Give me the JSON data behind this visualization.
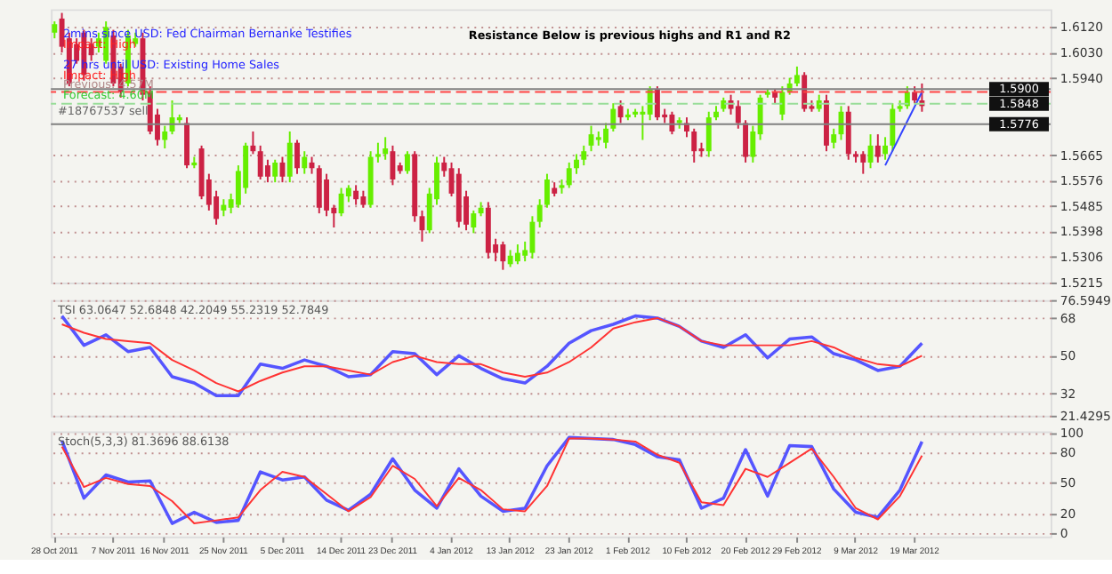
{
  "chart_data": [
    {
      "type": "candlestick",
      "categories": [
        null,
        null,
        null,
        null,
        null,
        null,
        null,
        null,
        null,
        null,
        null,
        null,
        null,
        null,
        null,
        null,
        null,
        null,
        null,
        null,
        null,
        null,
        null,
        null,
        null,
        null,
        null,
        null,
        null,
        null,
        null,
        null,
        null,
        null,
        null,
        null,
        null,
        null,
        null,
        null,
        null,
        null,
        null,
        null,
        null,
        null,
        null,
        null,
        null,
        null,
        null,
        null,
        null,
        null,
        null,
        null,
        null,
        null,
        null,
        null,
        null,
        null,
        null,
        null,
        null,
        null,
        null,
        null,
        null,
        null,
        null,
        null,
        null,
        null,
        null,
        null,
        null,
        null,
        null,
        null,
        null,
        null,
        null,
        null,
        null,
        null,
        null,
        null,
        null,
        null,
        null,
        null,
        null,
        null,
        null,
        null,
        null,
        null,
        null,
        null,
        null,
        null,
        null,
        null,
        null,
        null,
        null,
        null,
        null,
        null,
        null,
        null,
        null,
        null,
        null,
        null,
        null,
        null,
        null,
        null,
        null,
        null,
        null,
        null,
        null,
        null,
        null,
        null,
        null,
        null,
        null,
        null,
        null,
        null,
        null,
        null
      ],
      "ohlc": [
        [
          1.61,
          1.614,
          1.608,
          1.613
        ],
        [
          1.615,
          1.617,
          1.603,
          1.605
        ],
        [
          1.608,
          1.61,
          1.591,
          1.592
        ],
        [
          1.606,
          1.608,
          1.599,
          1.6
        ],
        [
          1.61,
          1.611,
          1.593,
          1.595
        ],
        [
          1.606,
          1.608,
          1.6,
          1.602
        ],
        [
          1.605,
          1.61,
          1.603,
          1.608
        ],
        [
          1.6,
          1.614,
          1.599,
          1.612
        ],
        [
          1.609,
          1.611,
          1.591,
          1.592
        ],
        [
          1.598,
          1.599,
          1.587,
          1.589
        ],
        [
          1.592,
          1.611,
          1.591,
          1.609
        ],
        [
          1.606,
          1.61,
          1.605,
          1.608
        ],
        [
          1.608,
          1.61,
          1.586,
          1.588
        ],
        [
          1.589,
          1.591,
          1.574,
          1.575
        ],
        [
          1.581,
          1.583,
          1.57,
          1.572
        ],
        [
          1.572,
          1.577,
          1.569,
          1.575
        ],
        [
          1.575,
          1.586,
          1.574,
          1.58
        ],
        [
          1.579,
          1.581,
          1.578,
          1.58
        ],
        [
          1.578,
          1.58,
          1.562,
          1.563
        ],
        [
          1.563,
          1.566,
          1.562,
          1.564
        ],
        [
          1.569,
          1.57,
          1.551,
          1.552
        ],
        [
          1.558,
          1.56,
          1.547,
          1.549
        ],
        [
          1.552,
          1.554,
          1.542,
          1.544
        ],
        [
          1.547,
          1.551,
          1.545,
          1.549
        ],
        [
          1.548,
          1.553,
          1.546,
          1.551
        ],
        [
          1.549,
          1.563,
          1.548,
          1.561
        ],
        [
          1.555,
          1.571,
          1.553,
          1.57
        ],
        [
          1.57,
          1.575,
          1.567,
          1.568
        ],
        [
          1.568,
          1.57,
          1.558,
          1.559
        ],
        [
          1.563,
          1.565,
          1.557,
          1.559
        ],
        [
          1.559,
          1.565,
          1.557,
          1.564
        ],
        [
          1.564,
          1.566,
          1.557,
          1.559
        ],
        [
          1.559,
          1.575,
          1.557,
          1.571
        ],
        [
          1.571,
          1.572,
          1.56,
          1.562
        ],
        [
          1.562,
          1.568,
          1.56,
          1.566
        ],
        [
          1.564,
          1.566,
          1.56,
          1.562
        ],
        [
          1.562,
          1.563,
          1.546,
          1.548
        ],
        [
          1.558,
          1.56,
          1.545,
          1.547
        ],
        [
          1.548,
          1.549,
          1.541,
          1.546
        ],
        [
          1.546,
          1.555,
          1.545,
          1.553
        ],
        [
          1.552,
          1.556,
          1.55,
          1.555
        ],
        [
          1.554,
          1.556,
          1.549,
          1.551
        ],
        [
          1.552,
          1.554,
          1.548,
          1.549
        ],
        [
          1.549,
          1.568,
          1.548,
          1.566
        ],
        [
          1.566,
          1.571,
          1.564,
          1.567
        ],
        [
          1.567,
          1.573,
          1.565,
          1.569
        ],
        [
          1.568,
          1.57,
          1.556,
          1.558
        ],
        [
          1.563,
          1.564,
          1.56,
          1.561
        ],
        [
          1.561,
          1.568,
          1.56,
          1.567
        ],
        [
          1.567,
          1.568,
          1.543,
          1.545
        ],
        [
          1.545,
          1.547,
          1.536,
          1.54
        ],
        [
          1.54,
          1.555,
          1.539,
          1.553
        ],
        [
          1.551,
          1.566,
          1.549,
          1.564
        ],
        [
          1.564,
          1.566,
          1.559,
          1.561
        ],
        [
          1.562,
          1.564,
          1.552,
          1.553
        ],
        [
          1.56,
          1.562,
          1.541,
          1.543
        ],
        [
          1.552,
          1.554,
          1.54,
          1.542
        ],
        [
          1.541,
          1.547,
          1.539,
          1.546
        ],
        [
          1.546,
          1.55,
          1.545,
          1.548
        ],
        [
          1.548,
          1.55,
          1.53,
          1.532
        ],
        [
          1.535,
          1.537,
          1.529,
          1.532
        ],
        [
          1.535,
          1.536,
          1.526,
          1.529
        ],
        [
          1.528,
          1.533,
          1.527,
          1.531
        ],
        [
          1.529,
          1.535,
          1.528,
          1.532
        ],
        [
          1.531,
          1.536,
          1.529,
          1.533
        ],
        [
          1.532,
          1.545,
          1.53,
          1.543
        ],
        [
          1.543,
          1.551,
          1.541,
          1.549
        ],
        [
          1.549,
          1.56,
          1.548,
          1.558
        ],
        [
          1.555,
          1.557,
          1.552,
          1.553
        ],
        [
          1.555,
          1.558,
          1.553,
          1.556
        ],
        [
          1.556,
          1.564,
          1.555,
          1.562
        ],
        [
          1.562,
          1.567,
          1.56,
          1.565
        ],
        [
          1.565,
          1.57,
          1.563,
          1.568
        ],
        [
          1.57,
          1.577,
          1.568,
          1.574
        ],
        [
          1.572,
          1.575,
          1.57,
          1.573
        ],
        [
          1.571,
          1.578,
          1.569,
          1.576
        ],
        [
          1.576,
          1.585,
          1.575,
          1.583
        ],
        [
          1.584,
          1.586,
          1.578,
          1.58
        ],
        [
          1.58,
          1.583,
          1.579,
          1.581
        ],
        [
          1.581,
          1.583,
          1.58,
          1.582
        ],
        [
          1.581,
          1.584,
          1.572,
          1.582
        ],
        [
          1.581,
          1.591,
          1.579,
          1.59
        ],
        [
          1.59,
          1.591,
          1.579,
          1.58
        ],
        [
          1.581,
          1.583,
          1.578,
          1.58
        ],
        [
          1.581,
          1.582,
          1.574,
          1.575
        ],
        [
          1.578,
          1.58,
          1.576,
          1.579
        ],
        [
          1.578,
          1.58,
          1.573,
          1.575
        ],
        [
          1.575,
          1.576,
          1.564,
          1.568
        ],
        [
          1.569,
          1.571,
          1.566,
          1.568
        ],
        [
          1.568,
          1.582,
          1.566,
          1.58
        ],
        [
          1.58,
          1.584,
          1.579,
          1.582
        ],
        [
          1.583,
          1.587,
          1.582,
          1.586
        ],
        [
          1.586,
          1.588,
          1.581,
          1.583
        ],
        [
          1.584,
          1.586,
          1.576,
          1.578
        ],
        [
          1.578,
          1.579,
          1.564,
          1.566
        ],
        [
          1.566,
          1.577,
          1.564,
          1.575
        ],
        [
          1.574,
          1.588,
          1.572,
          1.587
        ],
        [
          1.588,
          1.59,
          1.587,
          1.589
        ],
        [
          1.589,
          1.59,
          1.585,
          1.587
        ],
        [
          1.581,
          1.591,
          1.579,
          1.589
        ],
        [
          1.589,
          1.594,
          1.588,
          1.592
        ],
        [
          1.592,
          1.598,
          1.591,
          1.595
        ],
        [
          1.595,
          1.596,
          1.582,
          1.583
        ],
        [
          1.584,
          1.586,
          1.582,
          1.583
        ],
        [
          1.583,
          1.588,
          1.582,
          1.586
        ],
        [
          1.586,
          1.588,
          1.568,
          1.57
        ],
        [
          1.571,
          1.576,
          1.569,
          1.574
        ],
        [
          1.574,
          1.584,
          1.572,
          1.582
        ],
        [
          1.582,
          1.584,
          1.565,
          1.567
        ],
        [
          1.567,
          1.568,
          1.564,
          1.566
        ],
        [
          1.567,
          1.568,
          1.56,
          1.564
        ],
        [
          1.564,
          1.574,
          1.562,
          1.57
        ],
        [
          1.57,
          1.574,
          1.564,
          1.566
        ],
        [
          1.567,
          1.573,
          1.565,
          1.57
        ],
        [
          1.57,
          1.585,
          1.568,
          1.583
        ],
        [
          1.583,
          1.586,
          1.582,
          1.584
        ],
        [
          1.584,
          1.591,
          1.583,
          1.589
        ],
        [
          1.589,
          1.591,
          1.585,
          1.586
        ],
        [
          1.586,
          1.592,
          1.582,
          1.584
        ],
        null,
        null,
        null,
        null,
        null,
        null,
        null,
        null,
        null,
        null,
        null,
        null,
        null,
        null,
        null,
        null,
        null
      ],
      "colors": [
        "#66ee00",
        "#cc2244",
        "#cc2244",
        "#cc2244",
        "#cc2244",
        "#cc2244",
        "#66ee00",
        "#66ee00",
        "#cc2244",
        "#cc2244",
        "#66ee00",
        "#66ee00",
        "#cc2244",
        "#cc2244",
        "#cc2244",
        "#66ee00",
        "#66ee00",
        "#66ee00",
        "#cc2244",
        "#66ee00",
        "#cc2244",
        "#cc2244",
        "#cc2244",
        "#66ee00",
        "#66ee00",
        "#66ee00",
        "#66ee00",
        "#cc2244",
        "#cc2244",
        "#cc2244",
        "#66ee00",
        "#cc2244",
        "#66ee00",
        "#cc2244",
        "#66ee00",
        "#cc2244",
        "#cc2244",
        "#cc2244",
        "#cc2244",
        "#66ee00",
        "#66ee00",
        "#cc2244",
        "#cc2244",
        "#66ee00",
        "#66ee00",
        "#66ee00",
        "#cc2244",
        "#cc2244",
        "#66ee00",
        "#cc2244",
        "#cc2244",
        "#66ee00",
        "#66ee00",
        "#cc2244",
        "#cc2244",
        "#cc2244",
        "#cc2244",
        "#66ee00",
        "#66ee00",
        "#cc2244",
        "#cc2244",
        "#cc2244",
        "#66ee00",
        "#66ee00",
        "#66ee00",
        "#66ee00",
        "#66ee00",
        "#66ee00",
        "#cc2244",
        "#66ee00",
        "#66ee00",
        "#66ee00",
        "#66ee00",
        "#66ee00",
        "#66ee00",
        "#66ee00",
        "#66ee00",
        "#cc2244",
        "#66ee00",
        "#66ee00",
        "#66ee00",
        "#66ee00",
        "#cc2244",
        "#cc2244",
        "#cc2244",
        "#66ee00",
        "#cc2244",
        "#cc2244",
        "#cc2244",
        "#66ee00",
        "#66ee00",
        "#66ee00",
        "#cc2244",
        "#cc2244",
        "#cc2244",
        "#66ee00",
        "#66ee00",
        "#66ee00",
        "#cc2244",
        "#66ee00",
        "#66ee00",
        "#66ee00",
        "#cc2244",
        "#cc2244",
        "#66ee00",
        "#cc2244",
        "#66ee00",
        "#66ee00",
        "#cc2244",
        "#cc2244",
        "#cc2244",
        "#66ee00",
        "#cc2244",
        "#66ee00",
        "#66ee00",
        "#66ee00",
        "#66ee00",
        "#cc2244",
        "#cc2244",
        null,
        null,
        null,
        null,
        null,
        null,
        null,
        null,
        null,
        null,
        null,
        null,
        null,
        null,
        null,
        null,
        null
      ],
      "ylim": [
        1.5215,
        1.6183
      ],
      "yticks": [
        {
          "value": 1.612,
          "label": "1.6120"
        },
        {
          "value": 1.603,
          "label": "1.6030"
        },
        {
          "value": 1.594,
          "label": "1.5940"
        },
        1.5665,
        1.5576,
        1.5485,
        1.5398,
        1.5306,
        1.5215
      ],
      "grid": "y",
      "tick_labels": "y",
      "ref_lines": [
        {
          "axis": "y",
          "value": 1.59,
          "label": "1.5900",
          "color": "#808080",
          "line_style": "solid"
        },
        {
          "axis": "y",
          "value": 1.589,
          "color": "#ff4444",
          "line_style": "dashed"
        },
        {
          "axis": "y",
          "value": 1.5848,
          "label": "1.5848",
          "color": "#99dd99",
          "line_style": "dashed"
        },
        {
          "axis": "y",
          "value": 1.5776,
          "label": "1.5776",
          "color": "#808080",
          "line_style": "solid"
        }
      ],
      "annotations": [
        "Resistance Below is previous highs and R1 and R2",
        "2mins since USD: Fed Chairman Bernanke Testifies",
        "Impact: High",
        "27 hrs until USD: Existing Home Sales",
        "Impact: High",
        "Previous: 4.57M",
        "Forecast: 4.60M",
        "#18767537 sell"
      ],
      "series": [
        {
          "type": "line",
          "color": "#3344ff",
          "values": [
            null,
            null,
            null,
            null,
            null,
            null,
            null,
            null,
            null,
            null,
            null,
            null,
            null,
            null,
            null,
            null,
            null,
            null,
            null,
            null,
            null,
            null,
            null,
            null,
            null,
            null,
            null,
            null,
            null,
            null,
            null,
            null,
            null,
            null,
            null,
            null,
            null,
            null,
            null,
            null,
            null,
            null,
            null,
            null,
            null,
            null,
            null,
            null,
            null,
            null,
            null,
            null,
            null,
            null,
            null,
            null,
            null,
            null,
            null,
            null,
            null,
            null,
            null,
            null,
            null,
            null,
            null,
            null,
            null,
            null,
            null,
            null,
            null,
            null,
            null,
            null,
            null,
            null,
            null,
            null,
            null,
            null,
            null,
            null,
            null,
            null,
            null,
            null,
            null,
            null,
            null,
            null,
            null,
            null,
            null,
            null,
            null,
            null,
            null,
            null,
            null,
            null,
            null,
            null,
            null,
            null,
            null,
            null,
            null,
            null,
            null,
            null,
            null,
            1.563,
            null,
            null,
            null,
            null,
            1.589,
            null,
            null,
            null,
            null,
            null,
            null,
            null,
            null,
            null,
            null,
            null,
            null,
            null,
            null,
            null,
            null,
            null
          ]
        }
      ]
    },
    {
      "type": "line",
      "title": "TSI 63.0647 52.6848 42.2049 55.2319 52.7849",
      "categories": [
        null,
        null,
        null,
        null,
        null,
        null,
        null,
        null,
        null,
        null,
        null,
        null,
        null,
        null,
        null,
        null,
        null,
        null,
        null,
        null,
        null,
        null,
        null,
        null,
        null,
        null,
        null,
        null,
        null,
        null,
        null,
        null,
        null,
        null,
        null,
        null,
        null,
        null,
        null,
        null,
        null,
        null,
        null,
        null,
        null,
        null,
        null,
        null,
        null,
        null,
        null,
        null,
        null,
        null,
        null,
        null,
        null,
        null,
        null,
        null,
        null,
        null,
        null,
        null,
        null,
        null,
        null,
        null,
        null,
        null,
        null,
        null,
        null,
        null,
        null,
        null,
        null,
        null,
        null,
        null,
        null,
        null,
        null,
        null,
        null,
        null,
        null,
        null,
        null,
        null,
        null,
        null,
        null,
        null,
        null,
        null,
        null,
        null,
        null,
        null,
        null,
        null,
        null,
        null,
        null,
        null,
        null,
        null,
        null,
        null,
        null,
        null,
        null,
        null,
        null,
        null,
        null,
        null,
        null,
        null,
        null,
        null,
        null,
        null,
        null,
        null,
        null,
        null,
        null,
        null,
        null,
        null,
        null,
        null,
        null,
        null
      ],
      "ylim": [
        21.4295,
        76.5949
      ],
      "yticks": [
        76.5949,
        68,
        50,
        32,
        21.4295
      ],
      "grid": "y",
      "tick_labels": "y",
      "series": [
        {
          "color": "#5555ff",
          "values": [
            null,
            69,
            null,
            null,
            55,
            null,
            null,
            60,
            null,
            null,
            52,
            null,
            null,
            54,
            null,
            null,
            40,
            null,
            null,
            37,
            null,
            null,
            31,
            null,
            null,
            31,
            null,
            null,
            46,
            null,
            null,
            44,
            null,
            null,
            48,
            null,
            null,
            45,
            null,
            null,
            40,
            null,
            null,
            41,
            null,
            null,
            52,
            null,
            null,
            51,
            null,
            null,
            41,
            null,
            null,
            50,
            null,
            null,
            44,
            null,
            null,
            39,
            null,
            null,
            37,
            null,
            null,
            45,
            null,
            null,
            56,
            null,
            null,
            62,
            null,
            null,
            65,
            null,
            null,
            69,
            null,
            null,
            68,
            null,
            null,
            64,
            null,
            null,
            57,
            null,
            null,
            54,
            null,
            null,
            60,
            null,
            null,
            49,
            null,
            null,
            58,
            null,
            null,
            59,
            null,
            null,
            51,
            null,
            null,
            48,
            null,
            null,
            43,
            null,
            null,
            45,
            null,
            null,
            56,
            null,
            null,
            null,
            null,
            null,
            null,
            null,
            null,
            null,
            null,
            null,
            null,
            null,
            null,
            null,
            null,
            null
          ]
        },
        {
          "color": "#ff3333",
          "values": [
            null,
            65,
            null,
            null,
            61,
            null,
            null,
            58,
            null,
            null,
            57,
            null,
            null,
            56,
            null,
            null,
            48,
            null,
            null,
            43,
            null,
            null,
            37,
            null,
            null,
            33,
            null,
            null,
            38,
            null,
            null,
            42,
            null,
            null,
            45,
            null,
            null,
            45,
            null,
            null,
            43,
            null,
            null,
            41,
            null,
            null,
            47,
            null,
            null,
            50,
            null,
            null,
            47,
            null,
            null,
            46,
            null,
            null,
            46,
            null,
            null,
            42,
            null,
            null,
            40,
            null,
            null,
            42,
            null,
            null,
            47,
            null,
            null,
            54,
            null,
            null,
            63,
            null,
            null,
            66,
            null,
            null,
            68,
            null,
            null,
            64,
            null,
            null,
            57,
            null,
            null,
            55,
            null,
            null,
            55,
            null,
            null,
            55,
            null,
            null,
            55,
            null,
            null,
            57,
            null,
            null,
            54,
            null,
            null,
            49,
            null,
            null,
            46,
            null,
            null,
            45,
            null,
            null,
            50,
            null,
            null,
            null,
            null,
            null,
            null,
            null,
            null,
            null,
            null,
            null,
            null,
            null,
            null,
            null,
            null,
            null
          ]
        }
      ]
    },
    {
      "type": "line",
      "title": "Stoch(5,3,3) 81.3696 88.6138",
      "categories": [
        "28 Oct 2011",
        null,
        null,
        null,
        null,
        null,
        null,
        null,
        "7 Nov 2011",
        null,
        null,
        null,
        null,
        null,
        null,
        "16 Nov 2011",
        null,
        null,
        null,
        null,
        null,
        null,
        null,
        "25 Nov 2011",
        null,
        null,
        null,
        null,
        null,
        null,
        null,
        "5 Dec 2011",
        null,
        null,
        null,
        null,
        null,
        null,
        null,
        "14 Dec 2011",
        null,
        null,
        null,
        null,
        null,
        null,
        "23 Dec 2011",
        null,
        null,
        null,
        null,
        null,
        null,
        null,
        "4 Jan 2012",
        null,
        null,
        null,
        null,
        null,
        null,
        null,
        "13 Jan 2012",
        null,
        null,
        null,
        null,
        null,
        null,
        null,
        "23 Jan 2012",
        null,
        null,
        null,
        null,
        null,
        null,
        null,
        "1 Feb 2012",
        null,
        null,
        null,
        null,
        null,
        null,
        null,
        "10 Feb 2012",
        null,
        null,
        null,
        null,
        null,
        null,
        null,
        "20 Feb 2012",
        null,
        null,
        null,
        null,
        null,
        null,
        "29 Feb 2012",
        null,
        null,
        null,
        null,
        null,
        null,
        null,
        "9 Mar 2012",
        null,
        null,
        null,
        null,
        null,
        null,
        null,
        "19 Mar 2012",
        null,
        null,
        null,
        null,
        null,
        null,
        null,
        null,
        null,
        null,
        null,
        null,
        null,
        null,
        null,
        null,
        null,
        null
      ],
      "ylim": [
        -3,
        101
      ],
      "yticks": [
        100,
        80,
        50,
        20,
        0
      ],
      "grid": "y",
      "series": [
        {
          "color": "#5555ff",
          "values": [
            null,
            92,
            null,
            null,
            35,
            null,
            null,
            58,
            null,
            null,
            51,
            null,
            null,
            52,
            null,
            null,
            10,
            null,
            null,
            21,
            null,
            null,
            11,
            null,
            null,
            13,
            null,
            null,
            61,
            null,
            null,
            53,
            null,
            null,
            56,
            null,
            null,
            33,
            null,
            null,
            23,
            null,
            null,
            39,
            null,
            null,
            74,
            null,
            null,
            43,
            null,
            null,
            25,
            null,
            null,
            64,
            null,
            null,
            37,
            null,
            null,
            22,
            null,
            null,
            25,
            null,
            null,
            67,
            null,
            null,
            95,
            null,
            null,
            94,
            null,
            null,
            93,
            null,
            null,
            88,
            null,
            null,
            76,
            null,
            null,
            73,
            null,
            null,
            25,
            null,
            null,
            35,
            null,
            null,
            83,
            null,
            null,
            37,
            null,
            null,
            87,
            null,
            null,
            86,
            null,
            null,
            44,
            null,
            null,
            21,
            null,
            null,
            16,
            null,
            null,
            43,
            null,
            null,
            91,
            null,
            null,
            null,
            null,
            null,
            null,
            null,
            null,
            null,
            null,
            null,
            null,
            null,
            null,
            null,
            null,
            null
          ]
        },
        {
          "color": "#ff3333",
          "values": [
            null,
            86,
            null,
            null,
            46,
            null,
            null,
            55,
            null,
            null,
            49,
            null,
            null,
            47,
            null,
            null,
            32,
            null,
            null,
            10,
            null,
            null,
            13,
            null,
            null,
            16,
            null,
            null,
            43,
            null,
            null,
            61,
            null,
            null,
            56,
            null,
            null,
            39,
            null,
            null,
            22,
            null,
            null,
            36,
            null,
            null,
            67,
            null,
            null,
            54,
            null,
            null,
            27,
            null,
            null,
            55,
            null,
            null,
            43,
            null,
            null,
            24,
            null,
            null,
            22,
            null,
            null,
            47,
            null,
            null,
            94,
            null,
            null,
            94,
            null,
            null,
            93,
            null,
            null,
            91,
            null,
            null,
            78,
            null,
            null,
            70,
            null,
            null,
            31,
            null,
            null,
            28,
            null,
            null,
            64,
            null,
            null,
            56,
            null,
            null,
            70,
            null,
            null,
            84,
            null,
            null,
            56,
            null,
            null,
            25,
            null,
            null,
            14,
            null,
            null,
            37,
            null,
            null,
            77,
            null,
            null,
            null,
            null,
            null,
            null,
            null,
            null,
            null,
            null,
            null,
            null,
            null,
            null,
            null,
            null,
            null
          ]
        }
      ]
    }
  ]
}
